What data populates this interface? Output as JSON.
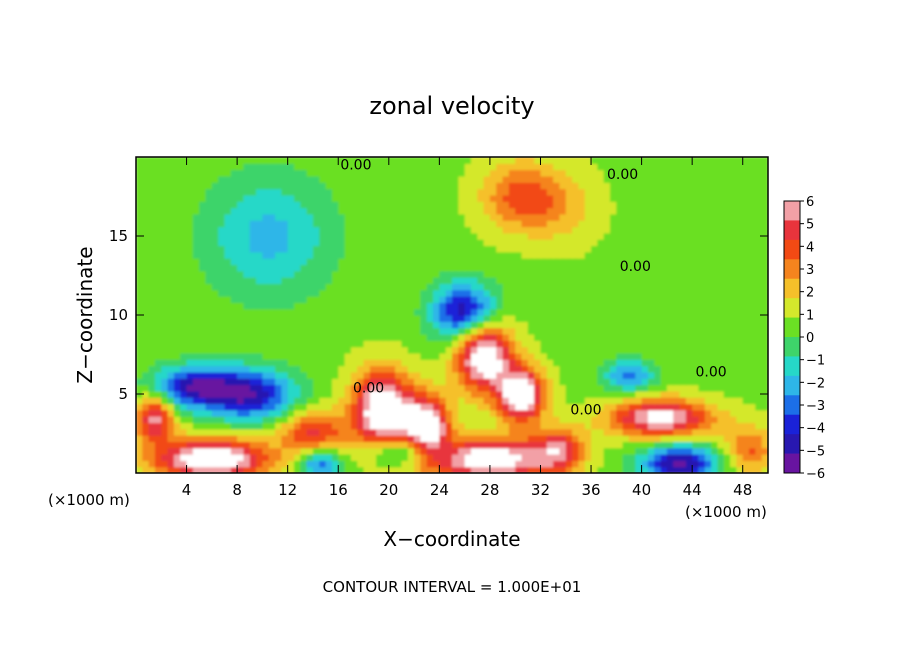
{
  "chart_data": {
    "type": "heatmap",
    "title": "zonal velocity",
    "xlabel": "X−coordinate",
    "ylabel": "Z−coordinate",
    "x_unit": "(×1000 m)",
    "x_unit_right": "(×1000 m)",
    "footer": "CONTOUR INTERVAL = 1.000E+01",
    "xlim": [
      0,
      50
    ],
    "ylim": [
      0,
      20
    ],
    "x_ticks": [
      4,
      8,
      12,
      16,
      20,
      24,
      28,
      32,
      36,
      40,
      44,
      48
    ],
    "y_ticks": [
      5,
      10,
      15
    ],
    "colorbar": {
      "min": -6,
      "max": 6,
      "labels": [
        "6",
        "5",
        "4",
        "3",
        "2",
        "1",
        "0",
        "−1",
        "−2",
        "−3",
        "−4",
        "−5",
        "−6"
      ],
      "colors": [
        "#f2a0a6",
        "#e8343c",
        "#f24a14",
        "#f5841e",
        "#f5c02a",
        "#d4e82c",
        "#6be024",
        "#3ed46a",
        "#26d8c8",
        "#2eb6e8",
        "#1c6fe8",
        "#1a22d8",
        "#2818b0",
        "#6814a0"
      ]
    },
    "contour_labels": [
      {
        "text": "0.00",
        "x": 17.4,
        "z": 19.2
      },
      {
        "text": "0.00",
        "x": 38.5,
        "z": 18.6
      },
      {
        "text": "0.00",
        "x": 39.5,
        "z": 12.8
      },
      {
        "text": "0.00",
        "x": 45.5,
        "z": 6.1
      },
      {
        "text": "0.00",
        "x": 18.4,
        "z": 5.1
      },
      {
        "text": "0.00",
        "x": 35.6,
        "z": 3.7
      }
    ],
    "features": [
      {
        "kind": "positive",
        "x": 30.5,
        "z": 17.5,
        "amp": 3.2,
        "sx": 3.2,
        "sz": 2.2
      },
      {
        "kind": "positive",
        "x": 34.0,
        "z": 16.8,
        "amp": 1.2,
        "sx": 3.0,
        "sz": 2.5
      },
      {
        "kind": "negative",
        "x": 10.5,
        "z": 15.0,
        "amp": 2.6,
        "sx": 5.0,
        "sz": 3.8
      },
      {
        "kind": "negative",
        "x": 4.5,
        "z": 5.5,
        "amp": 5.2,
        "sx": 3.2,
        "sz": 1.3
      },
      {
        "kind": "negative",
        "x": 9.0,
        "z": 5.0,
        "amp": 5.5,
        "sx": 3.5,
        "sz": 1.6
      },
      {
        "kind": "negative",
        "x": 26.0,
        "z": 10.2,
        "amp": 6.0,
        "sx": 2.5,
        "sz": 1.8
      },
      {
        "kind": "negative",
        "x": 39.0,
        "z": 6.2,
        "amp": 3.6,
        "sx": 2.0,
        "sz": 1.0
      },
      {
        "kind": "negative",
        "x": 43.0,
        "z": 0.6,
        "amp": 6.0,
        "sx": 3.0,
        "sz": 1.2
      },
      {
        "kind": "negative",
        "x": 14.5,
        "z": 0.6,
        "amp": 4.0,
        "sx": 1.6,
        "sz": 1.0
      },
      {
        "kind": "negative",
        "x": 21.5,
        "z": 1.4,
        "amp": 3.5,
        "sx": 3.0,
        "sz": 1.0
      },
      {
        "kind": "positive",
        "x": 6.0,
        "z": 0.9,
        "amp": 7.0,
        "sx": 4.5,
        "sz": 1.3
      },
      {
        "kind": "positive",
        "x": 14.0,
        "z": 2.6,
        "amp": 4.0,
        "sx": 2.5,
        "sz": 1.4
      },
      {
        "kind": "positive",
        "x": 19.5,
        "z": 4.0,
        "amp": 7.0,
        "sx": 2.4,
        "sz": 2.5
      },
      {
        "kind": "positive",
        "x": 23.0,
        "z": 2.8,
        "amp": 7.0,
        "sx": 1.8,
        "sz": 2.0
      },
      {
        "kind": "positive",
        "x": 28.0,
        "z": 0.9,
        "amp": 7.0,
        "sx": 4.5,
        "sz": 1.3
      },
      {
        "kind": "positive",
        "x": 33.5,
        "z": 1.5,
        "amp": 4.0,
        "sx": 2.0,
        "sz": 1.5
      },
      {
        "kind": "positive",
        "x": 27.5,
        "z": 7.5,
        "amp": 7.0,
        "sx": 2.2,
        "sz": 2.3
      },
      {
        "kind": "positive",
        "x": 30.5,
        "z": 5.0,
        "amp": 7.0,
        "sx": 1.8,
        "sz": 1.7
      },
      {
        "kind": "positive",
        "x": 41.5,
        "z": 3.5,
        "amp": 6.0,
        "sx": 4.0,
        "sz": 1.2
      },
      {
        "kind": "positive",
        "x": 1.5,
        "z": 3.5,
        "amp": 5.0,
        "sx": 1.5,
        "sz": 1.5
      },
      {
        "kind": "positive",
        "x": 48.5,
        "z": 1.5,
        "amp": 3.0,
        "sx": 2.0,
        "sz": 1.5
      }
    ]
  }
}
